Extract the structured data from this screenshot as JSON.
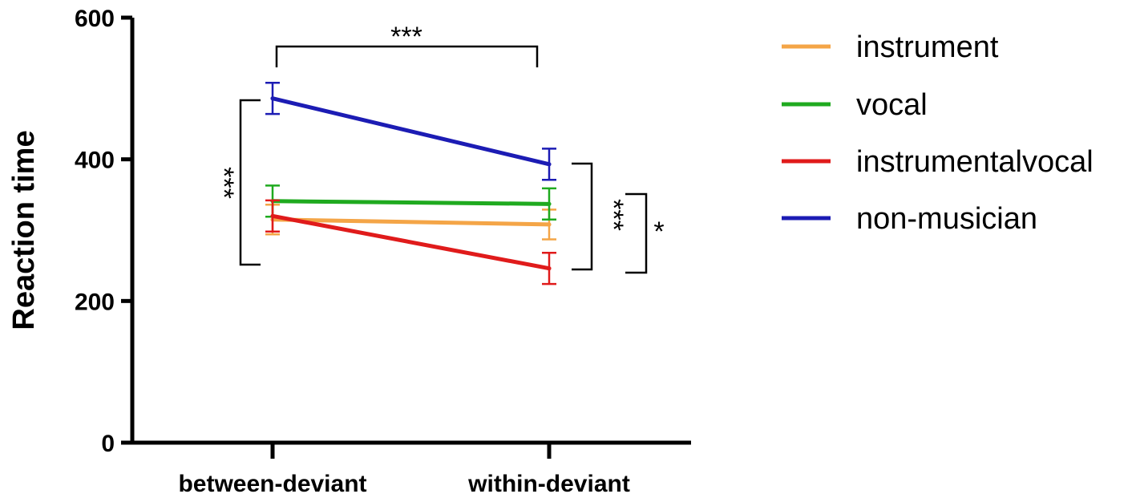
{
  "chart_data": {
    "type": "line",
    "ylabel": "Reaction time",
    "xlabel": "",
    "ylim": [
      0,
      600
    ],
    "yticks": [
      "0",
      "200",
      "400",
      "600"
    ],
    "categories": [
      "between-deviant",
      "within-deviant"
    ],
    "legend_position": "right",
    "series": [
      {
        "name": "instrument",
        "color": "#f4a547",
        "values": [
          315,
          308
        ],
        "error": [
          21,
          21
        ]
      },
      {
        "name": "vocal",
        "color": "#1faa1f",
        "values": [
          341,
          337
        ],
        "error": [
          22,
          22
        ]
      },
      {
        "name": "instrumentalvocal",
        "color": "#e01b1b",
        "values": [
          320,
          246
        ],
        "error": [
          22,
          22
        ]
      },
      {
        "name": "non-musician",
        "color": "#1c1cb4",
        "values": [
          486,
          393
        ],
        "error": [
          22,
          22
        ]
      }
    ],
    "annotations": [
      "***",
      "***",
      "***",
      "*"
    ]
  }
}
